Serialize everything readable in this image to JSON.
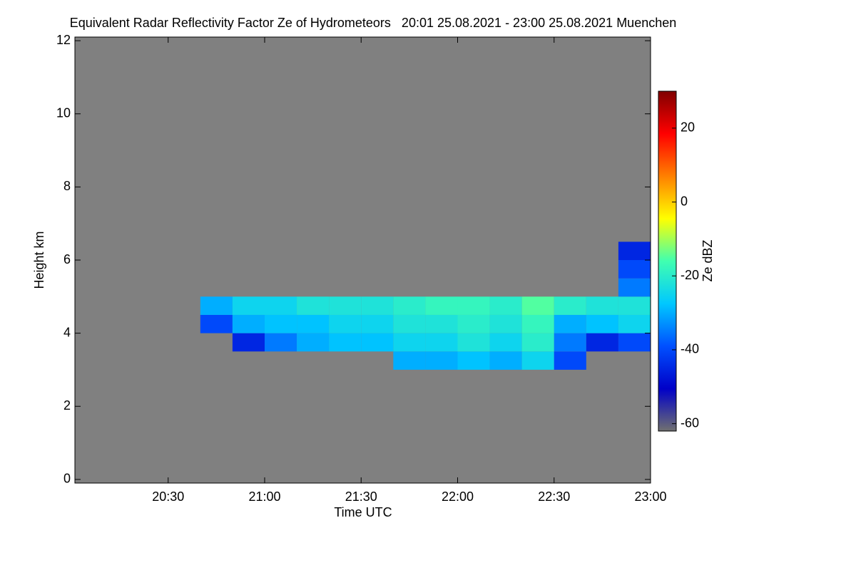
{
  "chart_data": {
    "type": "heatmap",
    "title": "Equivalent Radar Reflectivity Factor Ze of Hydrometeors   20:01 25.08.2021 - 23:00 25.08.2021 Muenchen",
    "x_label": "Time UTC",
    "y_label": "Height km",
    "colorbar_label": "Ze dBZ",
    "background": "#808080",
    "xlim": [
      "20:01",
      "23:00"
    ],
    "xticks": [
      "20:30",
      "21:00",
      "21:30",
      "22:00",
      "22:30",
      "23:00"
    ],
    "ylim": [
      -0.1,
      12.1
    ],
    "yticks": [
      0,
      2,
      4,
      6,
      8,
      10,
      12
    ],
    "zlim": [
      -62,
      30
    ],
    "zticks": [
      -60,
      -40,
      -20,
      0,
      20
    ],
    "colorscale": [
      "#707070",
      "#0000c8",
      "#0050ff",
      "#00c8ff",
      "#40ffb0",
      "#ffff00",
      "#ff8000",
      "#ff0000",
      "#800000"
    ],
    "x_bins": [
      "20:01",
      "20:10",
      "20:20",
      "20:30",
      "20:40",
      "20:50",
      "21:00",
      "21:10",
      "21:20",
      "21:30",
      "21:40",
      "21:50",
      "22:00",
      "22:10",
      "22:20",
      "22:30",
      "22:40",
      "22:50",
      "23:00"
    ],
    "y_bins": [
      3,
      3.5,
      4,
      4.5,
      5,
      5.5,
      6,
      6.5
    ],
    "values": [
      [
        null,
        null,
        null,
        null,
        null,
        null,
        null,
        null,
        null,
        null,
        -30,
        -30,
        -28,
        -30,
        -25,
        -40,
        null,
        null
      ],
      [
        null,
        null,
        null,
        null,
        null,
        -45,
        -35,
        -30,
        -28,
        -28,
        -25,
        -25,
        -22,
        -25,
        -20,
        -35,
        -45,
        -40
      ],
      [
        null,
        null,
        null,
        null,
        -40,
        -30,
        -28,
        -28,
        -25,
        -25,
        -22,
        -22,
        -20,
        -22,
        -18,
        -30,
        -28,
        -25
      ],
      [
        null,
        null,
        null,
        null,
        -30,
        -25,
        -25,
        -22,
        -22,
        -22,
        -20,
        -18,
        -18,
        -20,
        -15,
        -20,
        -22,
        -22
      ],
      [
        null,
        null,
        null,
        null,
        null,
        null,
        null,
        null,
        null,
        null,
        null,
        null,
        null,
        null,
        null,
        null,
        null,
        -35
      ],
      [
        null,
        null,
        null,
        null,
        null,
        null,
        null,
        null,
        null,
        null,
        null,
        null,
        null,
        null,
        null,
        null,
        null,
        -40
      ],
      [
        null,
        null,
        null,
        null,
        null,
        null,
        null,
        null,
        null,
        null,
        null,
        null,
        null,
        null,
        null,
        null,
        null,
        -45
      ]
    ]
  }
}
